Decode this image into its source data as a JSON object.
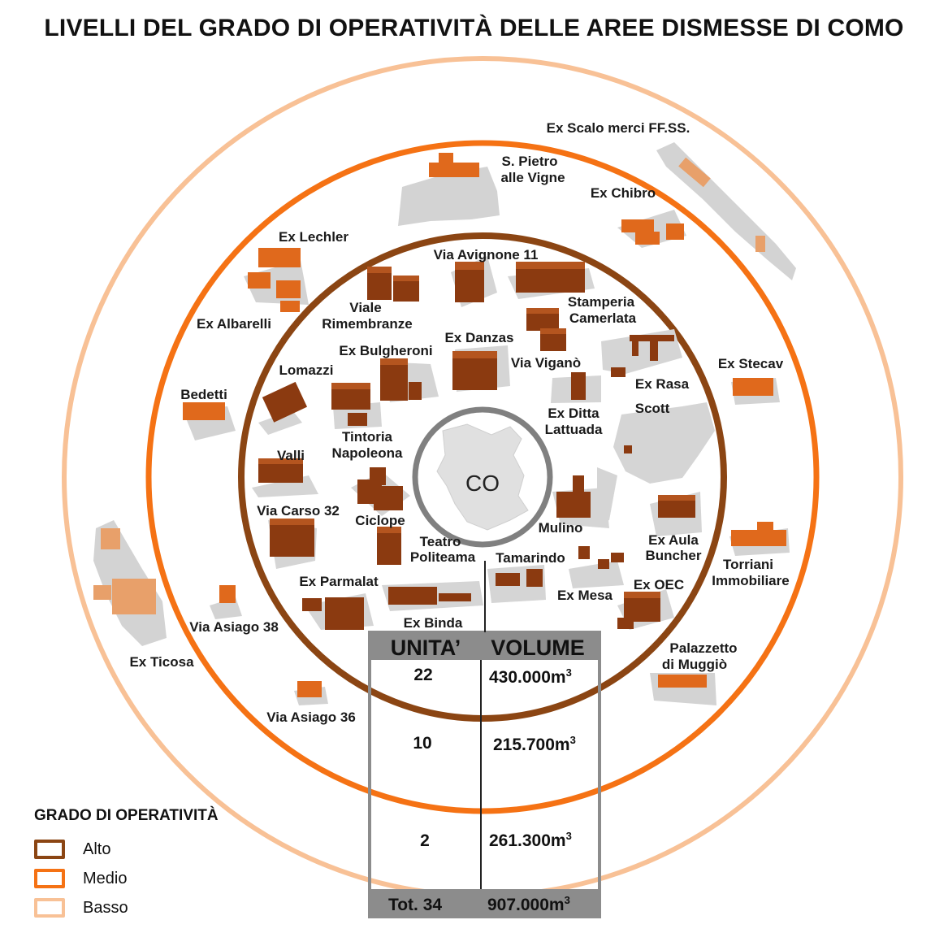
{
  "title": "LIVELLI DEL GRADO DI OPERATIVITÀ DELLE AREE DISMESSE DI COMO",
  "center_label": "CO",
  "colors": {
    "alto": "#8b4513",
    "medio": "#f57214",
    "basso": "#f8c196",
    "center_ring": "#7a7a7a",
    "footprint": "#d3d3d3",
    "building": "#8b3a10",
    "building_medio": "#e0691c",
    "building_basso": "#e8a06a"
  },
  "legend": {
    "title": "GRADO DI OPERATIVITÀ",
    "items": [
      {
        "label": "Alto",
        "color": "#8b4513"
      },
      {
        "label": "Medio",
        "color": "#f57214"
      },
      {
        "label": "Basso",
        "color": "#f8c196"
      }
    ]
  },
  "table": {
    "headers": [
      "UNITA’",
      "VOLUME"
    ],
    "rows": [
      {
        "unita": "22",
        "volume": "430.000m",
        "level": "Alto"
      },
      {
        "unita": "10",
        "volume": "215.700m",
        "level": "Medio"
      },
      {
        "unita": "2",
        "volume": "261.300m",
        "level": "Basso"
      }
    ],
    "total": {
      "unita": "Tot. 34",
      "volume": "907.000m"
    },
    "unit_sup": "3"
  },
  "areas": {
    "alto": [
      "Via Avignone 11",
      "Viale Rimembranze",
      "Stamperia Camerlata",
      "Ex Bulgheroni",
      "Ex Danzas",
      "Via Viganò",
      "Lomazzi",
      "Ex Rasa",
      "Ex Ditta Lattuada",
      "Tintoria Napoleona",
      "Scott",
      "Valli",
      "Via Carso 32",
      "Ciclope",
      "Mulino",
      "Teatro Politeama",
      "Ex Aula Buncher",
      "Tamarindo",
      "Ex Parmalat",
      "Ex Mesa",
      "Ex OEC",
      "Ex Binda"
    ],
    "medio": [
      "S. Pietro alle Vigne",
      "Ex Chibro",
      "Ex Lechler",
      "Ex Albarelli",
      "Ex Stecav",
      "Bedetti",
      "Torriani Immobiliare",
      "Via Asiago 38",
      "Palazzetto di Muggiò",
      "Via Asiago 36"
    ],
    "basso": [
      "Ex Scalo merci FF.SS.",
      "Ex Ticosa"
    ]
  }
}
